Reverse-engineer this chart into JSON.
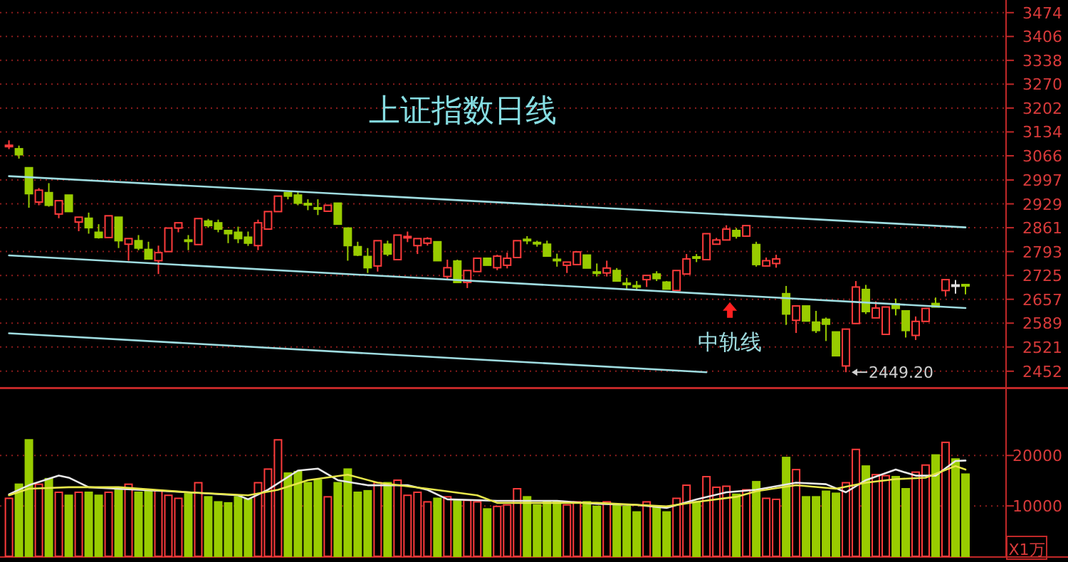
{
  "chart_data": [
    {
      "type": "candlestick",
      "title": "上证指数日线",
      "categories": [
        null,
        null,
        null,
        null,
        null,
        null,
        null,
        null,
        null,
        null,
        null,
        null,
        null,
        null,
        null,
        null,
        null,
        null,
        null,
        null,
        null,
        null,
        null,
        null,
        null,
        null,
        null,
        null,
        null,
        null,
        null,
        null,
        null,
        null,
        null,
        null,
        null,
        null,
        null,
        null,
        null,
        null,
        null,
        null,
        null,
        null,
        null,
        null,
        null,
        null,
        null,
        null,
        null,
        null,
        null,
        null,
        null,
        null,
        null,
        null,
        null,
        null,
        null,
        null,
        null,
        null,
        null,
        null,
        null,
        null,
        null,
        null,
        null,
        null,
        null,
        null,
        null,
        null,
        null,
        null,
        null,
        null,
        null,
        null,
        null,
        null,
        null,
        null,
        null,
        null,
        null,
        null,
        null,
        null,
        null,
        null,
        null
      ],
      "ohlc": [
        [
          3094,
          3110,
          3085,
          3096
        ],
        [
          3086,
          3095,
          3058,
          3069
        ],
        [
          3032,
          3032,
          2918,
          2958
        ],
        [
          2934,
          2974,
          2925,
          2968
        ],
        [
          2961,
          2988,
          2921,
          2925
        ],
        [
          2900,
          2938,
          2888,
          2938
        ],
        [
          2954,
          2954,
          2907,
          2907
        ],
        [
          2877,
          2891,
          2851,
          2891
        ],
        [
          2888,
          2904,
          2844,
          2861
        ],
        [
          2848,
          2871,
          2830,
          2833
        ],
        [
          2833,
          2895,
          2833,
          2895
        ],
        [
          2891,
          2891,
          2803,
          2824
        ],
        [
          2814,
          2830,
          2767,
          2830
        ],
        [
          2824,
          2840,
          2797,
          2803
        ],
        [
          2799,
          2821,
          2770,
          2772
        ],
        [
          2767,
          2810,
          2729,
          2790
        ],
        [
          2793,
          2860,
          2793,
          2860
        ],
        [
          2860,
          2875,
          2848,
          2875
        ],
        [
          2826,
          2840,
          2797,
          2822
        ],
        [
          2813,
          2887,
          2813,
          2887
        ],
        [
          2880,
          2886,
          2861,
          2867
        ],
        [
          2875,
          2884,
          2848,
          2857
        ],
        [
          2853,
          2853,
          2817,
          2844
        ],
        [
          2848,
          2864,
          2817,
          2830
        ],
        [
          2834,
          2850,
          2809,
          2817
        ],
        [
          2810,
          2884,
          2797,
          2875
        ],
        [
          2857,
          2907,
          2857,
          2907
        ],
        [
          2907,
          2951,
          2907,
          2951
        ],
        [
          2961,
          2961,
          2942,
          2951
        ],
        [
          2954,
          2965,
          2925,
          2931
        ],
        [
          2930,
          2942,
          2911,
          2927
        ],
        [
          2918,
          2942,
          2897,
          2915
        ],
        [
          2908,
          2925,
          2908,
          2925
        ],
        [
          2931,
          2931,
          2871,
          2871
        ],
        [
          2860,
          2860,
          2767,
          2810
        ],
        [
          2807,
          2821,
          2780,
          2783
        ],
        [
          2779,
          2803,
          2732,
          2747
        ],
        [
          2752,
          2824,
          2736,
          2824
        ],
        [
          2814,
          2824,
          2780,
          2786
        ],
        [
          2770,
          2840,
          2770,
          2840
        ],
        [
          2832,
          2850,
          2820,
          2836
        ],
        [
          2810,
          2830,
          2786,
          2830
        ],
        [
          2817,
          2834,
          2810,
          2830
        ],
        [
          2821,
          2821,
          2767,
          2767
        ],
        [
          2722,
          2770,
          2713,
          2747
        ],
        [
          2766,
          2770,
          2705,
          2705
        ],
        [
          2705,
          2739,
          2689,
          2739
        ],
        [
          2736,
          2774,
          2736,
          2774
        ],
        [
          2774,
          2774,
          2754,
          2754
        ],
        [
          2747,
          2784,
          2740,
          2780
        ],
        [
          2754,
          2790,
          2745,
          2774
        ],
        [
          2776,
          2824,
          2776,
          2824
        ],
        [
          2828,
          2837,
          2814,
          2825
        ],
        [
          2819,
          2824,
          2807,
          2816
        ],
        [
          2814,
          2824,
          2780,
          2780
        ],
        [
          2771,
          2787,
          2750,
          2768
        ],
        [
          2754,
          2763,
          2732,
          2763
        ],
        [
          2756,
          2792,
          2756,
          2792
        ],
        [
          2783,
          2783,
          2746,
          2746
        ],
        [
          2735,
          2759,
          2722,
          2732
        ],
        [
          2732,
          2767,
          2722,
          2746
        ],
        [
          2739,
          2746,
          2709,
          2709
        ],
        [
          2703,
          2718,
          2686,
          2700
        ],
        [
          2696,
          2709,
          2682,
          2693
        ],
        [
          2713,
          2725,
          2692,
          2725
        ],
        [
          2729,
          2737,
          2709,
          2716
        ],
        [
          2706,
          2709,
          2686,
          2686
        ],
        [
          2682,
          2739,
          2682,
          2739
        ],
        [
          2729,
          2786,
          2729,
          2772
        ],
        [
          2778,
          2786,
          2763,
          2775
        ],
        [
          2770,
          2844,
          2770,
          2844
        ],
        [
          2814,
          2832,
          2814,
          2826
        ],
        [
          2826,
          2868,
          2826,
          2857
        ],
        [
          2853,
          2860,
          2830,
          2837
        ],
        [
          2837,
          2867,
          2837,
          2867
        ],
        [
          2813,
          2821,
          2750,
          2756
        ],
        [
          2752,
          2776,
          2752,
          2767
        ],
        [
          2759,
          2784,
          2747,
          2772
        ],
        [
          2673,
          2695,
          2584,
          2615
        ],
        [
          2597,
          2638,
          2561,
          2638
        ],
        [
          2638,
          2638,
          2595,
          2595
        ],
        [
          2592,
          2624,
          2561,
          2568
        ],
        [
          2600,
          2605,
          2538,
          2586
        ],
        [
          2564,
          2564,
          2496,
          2496
        ],
        [
          2467,
          2572,
          2449.2,
          2572
        ],
        [
          2588,
          2709,
          2588,
          2692
        ],
        [
          2685,
          2698,
          2615,
          2622
        ],
        [
          2604,
          2651,
          2604,
          2632
        ],
        [
          2557,
          2635,
          2557,
          2635
        ],
        [
          2644,
          2659,
          2611,
          2631
        ],
        [
          2624,
          2624,
          2548,
          2568
        ],
        [
          2554,
          2608,
          2541,
          2594
        ],
        [
          2594,
          2631,
          2594,
          2631
        ],
        [
          2645,
          2662,
          2635,
          2635
        ],
        [
          2682,
          2713,
          2665,
          2713
        ],
        [
          2698,
          2712,
          2673,
          2698
        ],
        [
          2699,
          2700,
          2671,
          2696
        ]
      ],
      "colors": [
        "#ff3c3c",
        "#99cc00",
        "#99cc00",
        "#ff3c3c",
        "#99cc00",
        "#ff3c3c",
        "#99cc00",
        "#ff3c3c",
        "#99cc00",
        "#99cc00",
        "#ff3c3c",
        "#99cc00",
        "#ff3c3c",
        "#99cc00",
        "#99cc00",
        "#ff3c3c",
        "#ff3c3c",
        "#ff3c3c",
        "#99cc00",
        "#ff3c3c",
        "#99cc00",
        "#99cc00",
        "#99cc00",
        "#99cc00",
        "#99cc00",
        "#ff3c3c",
        "#ff3c3c",
        "#ff3c3c",
        "#99cc00",
        "#99cc00",
        "#99cc00",
        "#99cc00",
        "#ff3c3c",
        "#99cc00",
        "#99cc00",
        "#99cc00",
        "#99cc00",
        "#ff3c3c",
        "#99cc00",
        "#ff3c3c",
        "#ff3c3c",
        "#ff3c3c",
        "#ff3c3c",
        "#99cc00",
        "#ff3c3c",
        "#99cc00",
        "#ff3c3c",
        "#ff3c3c",
        "#99cc00",
        "#ff3c3c",
        "#ff3c3c",
        "#ff3c3c",
        "#99cc00",
        "#99cc00",
        "#99cc00",
        "#99cc00",
        "#ff3c3c",
        "#ff3c3c",
        "#99cc00",
        "#99cc00",
        "#ff3c3c",
        "#99cc00",
        "#99cc00",
        "#99cc00",
        "#ff3c3c",
        "#99cc00",
        "#99cc00",
        "#ff3c3c",
        "#ff3c3c",
        "#99cc00",
        "#ff3c3c",
        "#ff3c3c",
        "#ff3c3c",
        "#99cc00",
        "#ff3c3c",
        "#99cc00",
        "#ff3c3c",
        "#ff3c3c",
        "#99cc00",
        "#ff3c3c",
        "#99cc00",
        "#99cc00",
        "#99cc00",
        "#99cc00",
        "#ff3c3c",
        "#ff3c3c",
        "#99cc00",
        "#ff3c3c",
        "#ff3c3c",
        "#99cc00",
        "#99cc00",
        "#ff3c3c",
        "#ff3c3c",
        "#99cc00",
        "#ff3c3c",
        "#e0e0e0",
        "#99cc00"
      ],
      "series": [
        {
          "type": "line",
          "color": "#9fdce0",
          "values": [
            3008,
            null,
            null,
            null,
            null,
            null,
            null,
            null,
            null,
            null,
            null,
            null,
            null,
            null,
            null,
            null,
            null,
            null,
            null,
            null,
            null,
            null,
            null,
            null,
            null,
            null,
            null,
            null,
            null,
            null,
            null,
            null,
            null,
            null,
            null,
            null,
            null,
            null,
            null,
            null,
            null,
            null,
            null,
            null,
            null,
            null,
            null,
            null,
            null,
            null,
            null,
            null,
            null,
            null,
            null,
            null,
            null,
            null,
            null,
            null,
            null,
            null,
            null,
            null,
            null,
            null,
            null,
            null,
            null,
            null,
            null,
            null,
            null,
            null,
            null,
            null,
            null,
            null,
            null,
            null,
            null,
            null,
            null,
            null,
            null,
            null,
            null,
            null,
            null,
            null,
            null,
            null,
            null,
            null,
            null,
            null,
            2862
          ]
        },
        {
          "type": "line",
          "name": "中轨线",
          "color": "#9fdce0",
          "values": [
            2782,
            null,
            null,
            null,
            null,
            null,
            null,
            null,
            null,
            null,
            null,
            null,
            null,
            null,
            null,
            null,
            null,
            null,
            null,
            null,
            null,
            null,
            null,
            null,
            null,
            null,
            null,
            null,
            null,
            null,
            null,
            null,
            null,
            null,
            null,
            null,
            null,
            null,
            null,
            null,
            null,
            null,
            null,
            null,
            null,
            null,
            null,
            null,
            null,
            null,
            null,
            null,
            null,
            null,
            null,
            null,
            null,
            null,
            null,
            null,
            null,
            null,
            null,
            null,
            null,
            null,
            null,
            null,
            null,
            null,
            null,
            null,
            null,
            null,
            null,
            null,
            null,
            null,
            null,
            null,
            null,
            null,
            null,
            null,
            null,
            null,
            null,
            null,
            null,
            null,
            null,
            null,
            null,
            null,
            null,
            null,
            2632
          ]
        },
        {
          "type": "line",
          "color": "#9fdce0",
          "values": [
            2560,
            null,
            null,
            null,
            null,
            null,
            null,
            null,
            null,
            null,
            null,
            null,
            null,
            null,
            null,
            null,
            null,
            null,
            null,
            null,
            null,
            null,
            null,
            null,
            null,
            null,
            null,
            null,
            null,
            null,
            null,
            null,
            null,
            null,
            null,
            null,
            null,
            null,
            null,
            null,
            null,
            null,
            null,
            null,
            null,
            null,
            null,
            null,
            null,
            null,
            null,
            null,
            null,
            null,
            null,
            null,
            null,
            null,
            null,
            null,
            null,
            null,
            null,
            null,
            null,
            null,
            null,
            null,
            null,
            null,
            2449,
            null,
            null,
            null,
            null,
            null,
            null,
            null,
            null,
            null,
            null,
            null,
            null,
            null,
            null,
            null,
            null,
            null,
            null,
            null,
            null,
            null,
            null,
            null,
            null,
            null,
            null
          ]
        }
      ],
      "annotations": [
        "2449.20"
      ],
      "ylim": [
        2407,
        3510
      ],
      "yticks": [
        2452,
        2521,
        2589,
        2657,
        2725,
        2793,
        2861,
        2929,
        2997,
        3066,
        3134,
        3202,
        3270,
        3338,
        3406,
        3474
      ],
      "grid": "y"
    },
    {
      "type": "bar",
      "ylabel": "X1万",
      "categories": [
        null,
        null,
        null,
        null,
        null,
        null,
        null,
        null,
        null,
        null,
        null,
        null,
        null,
        null,
        null,
        null,
        null,
        null,
        null,
        null,
        null,
        null,
        null,
        null,
        null,
        null,
        null,
        null,
        null,
        null,
        null,
        null,
        null,
        null,
        null,
        null,
        null,
        null,
        null,
        null,
        null,
        null,
        null,
        null,
        null,
        null,
        null,
        null,
        null,
        null,
        null,
        null,
        null,
        null,
        null,
        null,
        null,
        null,
        null,
        null,
        null,
        null,
        null,
        null,
        null,
        null,
        null,
        null,
        null,
        null,
        null,
        null,
        null,
        null,
        null,
        null,
        null,
        null,
        null,
        null,
        null,
        null,
        null,
        null,
        null,
        null,
        null,
        null,
        null,
        null,
        null,
        null,
        null,
        null,
        null,
        null,
        null
      ],
      "series": [
        {
          "type": "bar",
          "colors": [
            "#ff3c3c",
            "#99cc00",
            "#99cc00",
            "#ff3c3c",
            "#99cc00",
            "#ff3c3c",
            "#99cc00",
            "#ff3c3c",
            "#99cc00",
            "#99cc00",
            "#ff3c3c",
            "#99cc00",
            "#ff3c3c",
            "#99cc00",
            "#99cc00",
            "#ff3c3c",
            "#ff3c3c",
            "#ff3c3c",
            "#99cc00",
            "#ff3c3c",
            "#99cc00",
            "#99cc00",
            "#99cc00",
            "#99cc00",
            "#99cc00",
            "#ff3c3c",
            "#ff3c3c",
            "#ff3c3c",
            "#99cc00",
            "#99cc00",
            "#99cc00",
            "#99cc00",
            "#ff3c3c",
            "#99cc00",
            "#99cc00",
            "#99cc00",
            "#99cc00",
            "#ff3c3c",
            "#99cc00",
            "#ff3c3c",
            "#ff3c3c",
            "#ff3c3c",
            "#ff3c3c",
            "#99cc00",
            "#ff3c3c",
            "#99cc00",
            "#ff3c3c",
            "#ff3c3c",
            "#99cc00",
            "#ff3c3c",
            "#ff3c3c",
            "#ff3c3c",
            "#99cc00",
            "#99cc00",
            "#99cc00",
            "#99cc00",
            "#ff3c3c",
            "#ff3c3c",
            "#99cc00",
            "#99cc00",
            "#ff3c3c",
            "#99cc00",
            "#99cc00",
            "#99cc00",
            "#ff3c3c",
            "#99cc00",
            "#99cc00",
            "#ff3c3c",
            "#ff3c3c",
            "#99cc00",
            "#ff3c3c",
            "#ff3c3c",
            "#ff3c3c",
            "#99cc00",
            "#ff3c3c",
            "#99cc00",
            "#ff3c3c",
            "#ff3c3c",
            "#99cc00",
            "#ff3c3c",
            "#99cc00",
            "#99cc00",
            "#99cc00",
            "#99cc00",
            "#ff3c3c",
            "#ff3c3c",
            "#99cc00",
            "#ff3c3c",
            "#ff3c3c",
            "#99cc00",
            "#99cc00",
            "#ff3c3c",
            "#ff3c3c",
            "#99cc00",
            "#ff3c3c",
            "#99cc00",
            "#99cc00"
          ],
          "values": [
            11500,
            14300,
            23100,
            14300,
            15400,
            12700,
            12100,
            12700,
            12700,
            12100,
            12700,
            13700,
            14300,
            12700,
            13000,
            13000,
            12100,
            11500,
            12400,
            14600,
            11800,
            10800,
            10600,
            11800,
            11300,
            14600,
            17300,
            23100,
            16500,
            16800,
            14600,
            15100,
            11800,
            14600,
            17300,
            12700,
            13000,
            14600,
            14600,
            15100,
            12100,
            12700,
            10800,
            11500,
            11800,
            11000,
            11100,
            10800,
            9400,
            9900,
            10200,
            13400,
            11800,
            10200,
            10800,
            10800,
            10200,
            10800,
            10800,
            9900,
            10800,
            10200,
            9900,
            8800,
            10800,
            9900,
            8800,
            11500,
            14100,
            10800,
            15800,
            13700,
            13900,
            12300,
            13200,
            14800,
            11500,
            11300,
            19600,
            17200,
            11800,
            11800,
            12900,
            12500,
            14600,
            21200,
            17900,
            16200,
            16000,
            15800,
            13400,
            16700,
            18100,
            20100,
            22600,
            19300,
            16300
          ]
        },
        {
          "type": "line",
          "color": "#e8e8e8",
          "values": [
            12300,
            null,
            14100,
            null,
            null,
            16000,
            15600,
            null,
            13700,
            null,
            null,
            null,
            null,
            13200,
            null,
            null,
            null,
            null,
            12700,
            null,
            null,
            null,
            null,
            12100,
            11300,
            null,
            13200,
            null,
            null,
            17000,
            null,
            17400,
            null,
            15100,
            null,
            null,
            14100,
            null,
            null,
            null,
            14100,
            null,
            13200,
            null,
            11300,
            null,
            null,
            null,
            null,
            11000,
            null,
            null,
            null,
            null,
            null,
            11000,
            null,
            null,
            null,
            10400,
            null,
            null,
            null,
            10200,
            null,
            null,
            9600,
            null,
            null,
            11300,
            null,
            null,
            12700,
            null,
            null,
            13200,
            null,
            null,
            null,
            14600,
            null,
            null,
            14300,
            null,
            12700,
            null,
            15100,
            null,
            null,
            17200,
            null,
            16000,
            null,
            16000,
            null,
            18900,
            19000
          ]
        },
        {
          "type": "line",
          "color": "#e6e64b",
          "values": [
            12100,
            null,
            13400,
            null,
            null,
            null,
            13700,
            null,
            null,
            null,
            null,
            13700,
            null,
            null,
            null,
            null,
            null,
            null,
            12700,
            null,
            null,
            null,
            null,
            null,
            12100,
            null,
            null,
            13200,
            null,
            null,
            15100,
            null,
            null,
            null,
            16200,
            null,
            null,
            14600,
            null,
            null,
            null,
            null,
            13400,
            null,
            null,
            null,
            null,
            12100,
            null,
            10600,
            null,
            null,
            null,
            null,
            null,
            null,
            null,
            null,
            null,
            10600,
            null,
            null,
            null,
            null,
            null,
            null,
            9900,
            null,
            null,
            10800,
            null,
            null,
            null,
            11800,
            null,
            12900,
            null,
            null,
            null,
            14100,
            null,
            null,
            null,
            13400,
            null,
            null,
            14600,
            null,
            null,
            15300,
            null,
            null,
            15600,
            null,
            null,
            17900,
            17200
          ]
        }
      ],
      "ylim": [
        0,
        33300
      ],
      "yticks": [
        10000,
        20000
      ],
      "grid": "y"
    }
  ]
}
